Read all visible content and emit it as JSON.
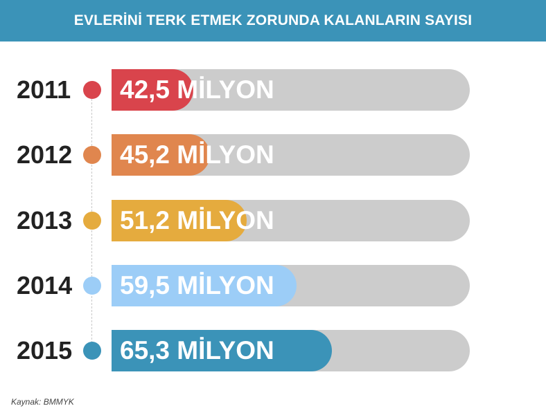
{
  "title": "EVLERİNİ TERK ETMEK ZORUNDA KALANLARIN SAYISI",
  "source": "Kaynak: BMMYK",
  "colors": {
    "header": "#3b93b8",
    "track": "#cccccc"
  },
  "chart_data": {
    "type": "bar",
    "orientation": "horizontal",
    "title": "EVLERİNİ TERK ETMEK ZORUNDA KALANLARIN SAYISI",
    "categories": [
      "2011",
      "2012",
      "2013",
      "2014",
      "2015"
    ],
    "values": [
      42.5,
      45.2,
      51.2,
      59.5,
      65.3
    ],
    "labels": [
      "42,5 MİLYON",
      "45,2 MİLYON",
      "51,2 MİLYON",
      "59,5 MİLYON",
      "65,3 MİLYON"
    ],
    "colors": [
      "#d9444c",
      "#e0864e",
      "#e5ab3e",
      "#9ccdf7",
      "#3b93b8"
    ],
    "xlim": [
      29,
      88
    ],
    "grid": false,
    "legend": "none"
  }
}
